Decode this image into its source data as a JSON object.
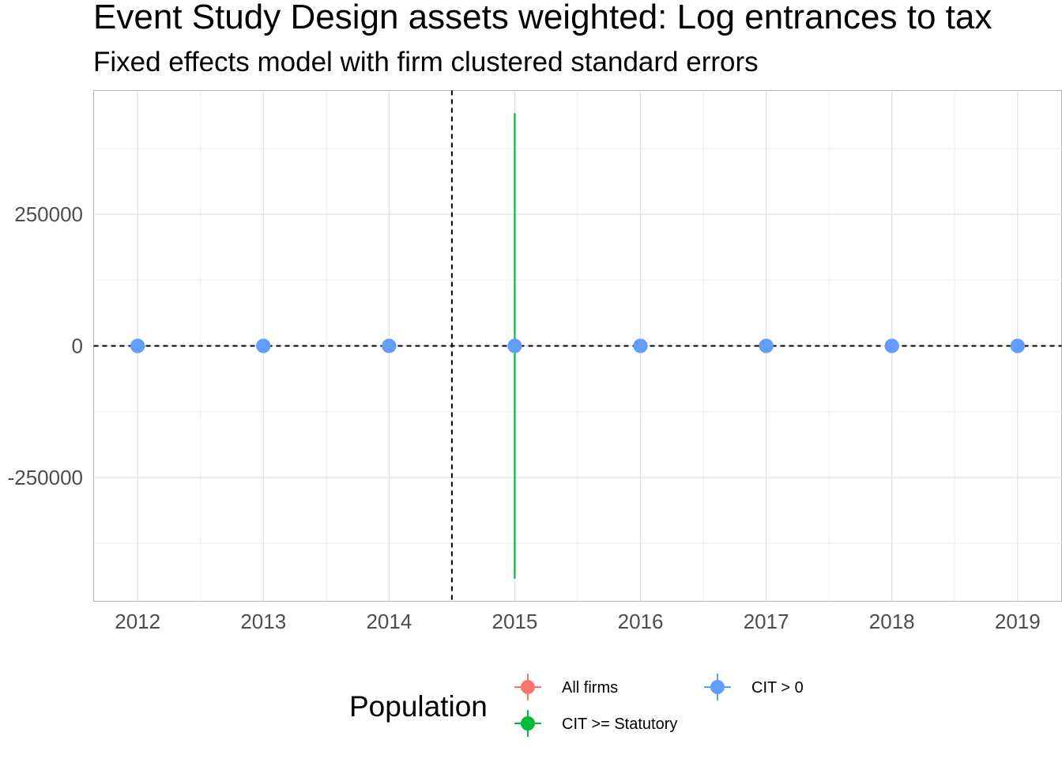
{
  "chart_data": {
    "type": "scatter",
    "title": "Event Study Design assets weighted: Log entrances to tax",
    "subtitle": "Fixed effects model with firm clustered standard errors",
    "xlabel": "",
    "ylabel": "",
    "x": [
      2012,
      2013,
      2014,
      2015,
      2016,
      2017,
      2018,
      2019
    ],
    "x_ticks": [
      "2012",
      "2013",
      "2014",
      "2015",
      "2016",
      "2017",
      "2018",
      "2019"
    ],
    "y_ticks": [
      "250000",
      "0",
      "-250000"
    ],
    "xlim": [
      2011.65,
      2019.35
    ],
    "ylim": [
      -485000,
      485000
    ],
    "reference_lines": {
      "vertical_x": 2014.5,
      "horizontal_y": 0
    },
    "grid": true,
    "series": [
      {
        "name": "All firms",
        "color": "#F8766D",
        "points": [
          {
            "x": 2012,
            "y": 0,
            "lo": 0,
            "hi": 0
          },
          {
            "x": 2013,
            "y": 0,
            "lo": 0,
            "hi": 0
          },
          {
            "x": 2014,
            "y": 0,
            "lo": 0,
            "hi": 0
          },
          {
            "x": 2015,
            "y": 0,
            "lo": 0,
            "hi": 0
          },
          {
            "x": 2016,
            "y": 0,
            "lo": 0,
            "hi": 0
          },
          {
            "x": 2017,
            "y": 0,
            "lo": 0,
            "hi": 0
          },
          {
            "x": 2018,
            "y": 0,
            "lo": 0,
            "hi": 0
          },
          {
            "x": 2019,
            "y": 0,
            "lo": 0,
            "hi": 0
          }
        ]
      },
      {
        "name": "CIT >= Statutory",
        "color": "#00BA38",
        "points": [
          {
            "x": 2012,
            "y": 0,
            "lo": 0,
            "hi": 0
          },
          {
            "x": 2013,
            "y": 0,
            "lo": 0,
            "hi": 0
          },
          {
            "x": 2014,
            "y": 0,
            "lo": 0,
            "hi": 0
          },
          {
            "x": 2015,
            "y": 0,
            "lo": -442000,
            "hi": 442000
          },
          {
            "x": 2016,
            "y": 0,
            "lo": 0,
            "hi": 0
          },
          {
            "x": 2017,
            "y": 0,
            "lo": 0,
            "hi": 0
          },
          {
            "x": 2018,
            "y": 0,
            "lo": 0,
            "hi": 0
          },
          {
            "x": 2019,
            "y": 0,
            "lo": 0,
            "hi": 0
          }
        ]
      },
      {
        "name": "CIT > 0",
        "color": "#619CFF",
        "points": [
          {
            "x": 2012,
            "y": 0,
            "lo": 0,
            "hi": 0
          },
          {
            "x": 2013,
            "y": 0,
            "lo": 0,
            "hi": 0
          },
          {
            "x": 2014,
            "y": 0,
            "lo": 0,
            "hi": 0
          },
          {
            "x": 2015,
            "y": 0,
            "lo": 0,
            "hi": 0
          },
          {
            "x": 2016,
            "y": 0,
            "lo": 0,
            "hi": 0
          },
          {
            "x": 2017,
            "y": 0,
            "lo": 0,
            "hi": 0
          },
          {
            "x": 2018,
            "y": 0,
            "lo": 0,
            "hi": 0
          },
          {
            "x": 2019,
            "y": 0,
            "lo": 0,
            "hi": 0
          }
        ]
      }
    ],
    "legend": {
      "title": "Population",
      "placement": "bottom",
      "entries": [
        "All firms",
        "CIT >= Statutory",
        "CIT > 0"
      ]
    }
  }
}
